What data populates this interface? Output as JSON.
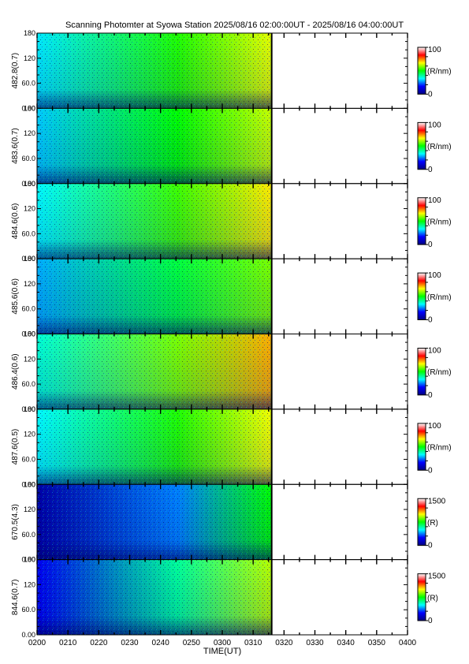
{
  "title": "Scanning Photomter at Syowa Station 2025/08/16 02:00:00UT - 2025/08/16 04:00:00UT",
  "chart_data": {
    "type": "heatmap",
    "xlabel": "TIME(UT)",
    "x_tick_labels": [
      "0200",
      "0210",
      "0220",
      "0230",
      "0240",
      "0250",
      "0300",
      "0310",
      "0320",
      "0330",
      "0340",
      "0350",
      "0400"
    ],
    "xlim": [
      "0200",
      "0400"
    ],
    "data_end": "0316",
    "y_tick_labels": [
      "0.00",
      "60.0",
      "120",
      "180"
    ],
    "ylim": [
      0,
      180
    ],
    "colormap": [
      "#000080",
      "#0000ff",
      "#00ffff",
      "#00ff00",
      "#ffff00",
      "#ff0000",
      "#ffffff"
    ],
    "panels": [
      {
        "ylabel": "482.8(0.7)",
        "unit": "(R/nm)",
        "scale_max": "100",
        "scale_min": "0",
        "low": 0.32,
        "mid": 0.52,
        "high": 0.65
      },
      {
        "ylabel": "483.6(0.7)",
        "unit": "(R/nm)",
        "scale_max": "100",
        "scale_min": "0",
        "low": 0.3,
        "mid": 0.5,
        "high": 0.63
      },
      {
        "ylabel": "484.6(0.6)",
        "unit": "(R/nm)",
        "scale_max": "100",
        "scale_min": "0",
        "low": 0.33,
        "mid": 0.54,
        "high": 0.68
      },
      {
        "ylabel": "485.6(0.6)",
        "unit": "(R/nm)",
        "scale_max": "100",
        "scale_min": "0",
        "low": 0.28,
        "mid": 0.46,
        "high": 0.58
      },
      {
        "ylabel": "486.4(0.6)",
        "unit": "(R/nm)",
        "scale_max": "100",
        "scale_min": "0",
        "low": 0.36,
        "mid": 0.58,
        "high": 0.72
      },
      {
        "ylabel": "487.6(0.5)",
        "unit": "(R/nm)",
        "scale_max": "100",
        "scale_min": "0",
        "low": 0.33,
        "mid": 0.52,
        "high": 0.66
      },
      {
        "ylabel": "670.5(4.3)",
        "unit": "(R)",
        "scale_max": "1500",
        "scale_min": "0",
        "low": 0.05,
        "mid": 0.25,
        "high": 0.5
      },
      {
        "ylabel": "844.6(0.7)",
        "unit": "(R)",
        "scale_max": "1500",
        "scale_min": "0",
        "low": 0.15,
        "mid": 0.4,
        "high": 0.62
      }
    ]
  }
}
